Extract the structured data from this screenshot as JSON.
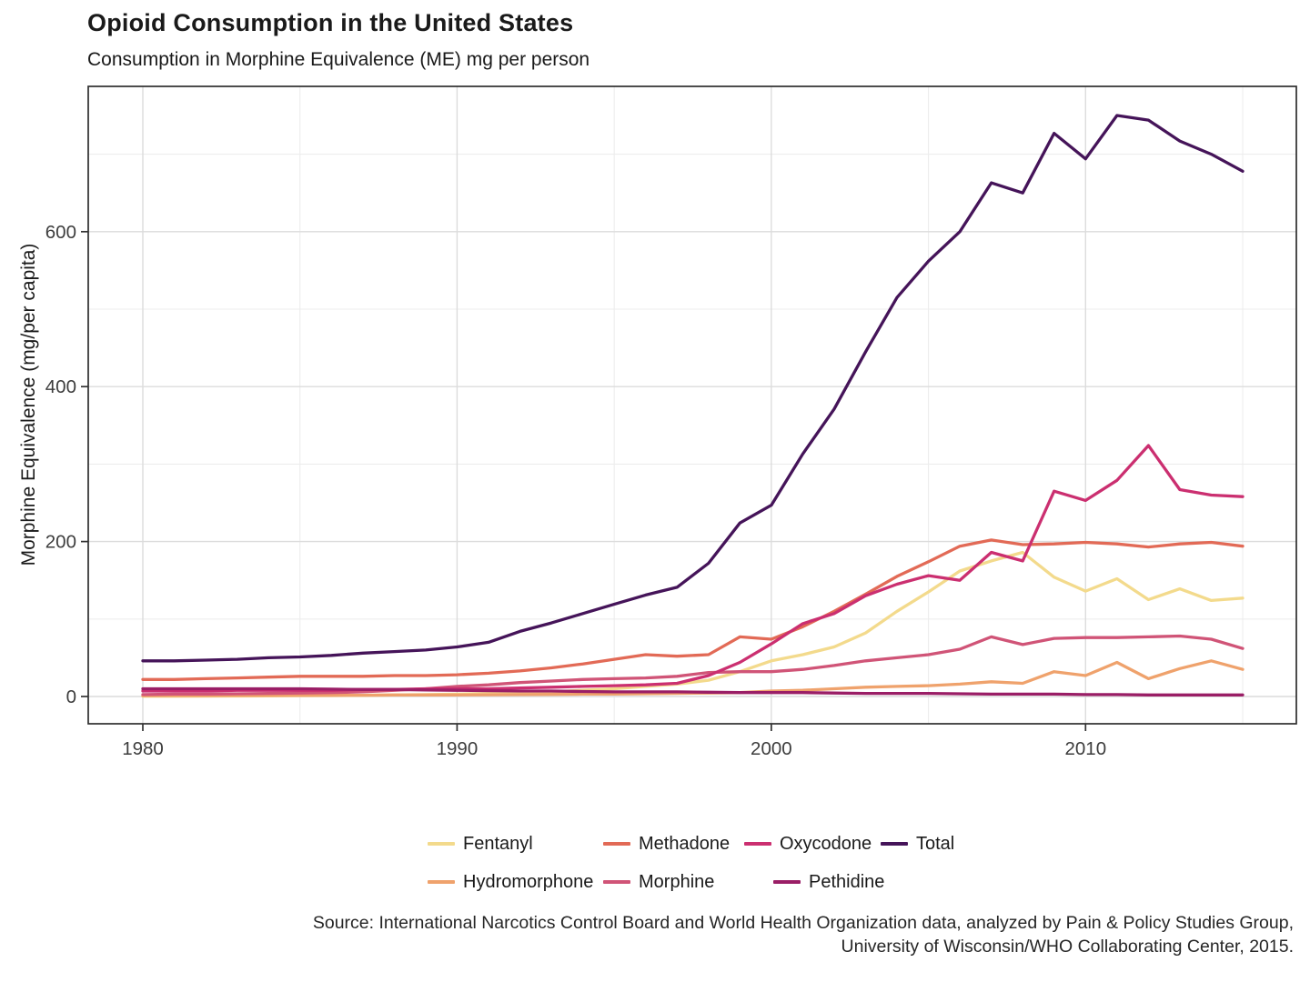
{
  "title": "Opioid Consumption in the United States",
  "subtitle": "Consumption in Morphine Equivalence (ME) mg per person",
  "y_axis": {
    "label": "Morphine Equivalence (mg/per capita)",
    "tick_labels": [
      "0",
      "200",
      "400",
      "600"
    ]
  },
  "x_axis": {
    "tick_labels": [
      "1980",
      "1990",
      "2000",
      "2010"
    ]
  },
  "caption": {
    "line1": "Source: International Narcotics Control Board and World Health Organization data, analyzed by Pain & Policy Studies Group,",
    "line2": "University of Wisconsin/WHO Collaborating Center, 2015."
  },
  "legend": {
    "rows": [
      [
        "Fentanyl",
        "Methadone",
        "Oxycodone",
        "Total"
      ],
      [
        "Hydromorphone",
        "Morphine",
        "Pethidine"
      ]
    ]
  },
  "colors": {
    "Fentanyl": "#F3DA8C",
    "Hydromorphone": "#EFA26C",
    "Methadone": "#E26A56",
    "Morphine": "#D05477",
    "Oxycodone": "#CB2F70",
    "Pethidine": "#9A1E66",
    "Total": "#451459",
    "grid_major": "#DCDCDC",
    "grid_minor": "#EDEDED",
    "panel_border": "#2e2e2e",
    "tick_text": "#3d3d3d"
  },
  "chart_data": {
    "type": "line",
    "title": "Opioid Consumption in the United States",
    "subtitle": "Consumption in Morphine Equivalence (ME) mg per person",
    "xlabel": "",
    "ylabel": "Morphine Equivalence (mg/per capita)",
    "xlim": [
      1978.2,
      2016.8
    ],
    "ylim": [
      0,
      787
    ],
    "yticks": [
      0,
      200,
      400,
      600
    ],
    "yminor": [
      100,
      300,
      500,
      700
    ],
    "xticks": [
      1980,
      1990,
      2000,
      2010
    ],
    "xminor": [
      1985,
      1995,
      2005,
      2015
    ],
    "grid": true,
    "legend_position": "bottom",
    "x": [
      1980,
      1981,
      1982,
      1983,
      1984,
      1985,
      1986,
      1987,
      1988,
      1989,
      1990,
      1991,
      1992,
      1993,
      1994,
      1995,
      1996,
      1997,
      1998,
      1999,
      2000,
      2001,
      2002,
      2003,
      2004,
      2005,
      2006,
      2007,
      2008,
      2009,
      2010,
      2011,
      2012,
      2013,
      2014,
      2015
    ],
    "series": [
      {
        "name": "Fentanyl",
        "values": [
          0.3,
          0.4,
          0.5,
          0.6,
          0.8,
          1,
          1.2,
          1.5,
          2,
          2.5,
          3,
          4,
          5,
          6,
          8,
          10,
          13,
          16,
          21,
          32,
          46,
          54,
          64,
          82,
          110,
          135,
          162,
          175,
          186,
          154,
          136,
          152,
          125,
          139,
          124,
          127
        ]
      },
      {
        "name": "Hydromorphone",
        "values": [
          1,
          1,
          1,
          1.2,
          1.3,
          1.5,
          1.5,
          1.7,
          2,
          2,
          2,
          2.2,
          2.5,
          2.7,
          3,
          3,
          3.5,
          4,
          4.5,
          5,
          7,
          8,
          10,
          12,
          13,
          14,
          16,
          19,
          17,
          32,
          27,
          44,
          23,
          36,
          46,
          35
        ]
      },
      {
        "name": "Methadone",
        "values": [
          22,
          22,
          23,
          24,
          25,
          26,
          26,
          26,
          27,
          27,
          28,
          30,
          33,
          37,
          42,
          48,
          54,
          52,
          54,
          77,
          74,
          90,
          110,
          132,
          155,
          174,
          194,
          202,
          196,
          197,
          199,
          197,
          193,
          197,
          199,
          194
        ]
      },
      {
        "name": "Morphine",
        "values": [
          2.5,
          3,
          3,
          3.5,
          4,
          4.5,
          5,
          6,
          8,
          10,
          13,
          15,
          18,
          20,
          22,
          23,
          24,
          26,
          31,
          32,
          32,
          35,
          40,
          46,
          50,
          54,
          61,
          77,
          67,
          75,
          76,
          76,
          77,
          78,
          74,
          62
        ]
      },
      {
        "name": "Oxycodone",
        "values": [
          7,
          7,
          7,
          8,
          8,
          8,
          8,
          9,
          9,
          10,
          10,
          10,
          11,
          12,
          13,
          14,
          15,
          17,
          27,
          44,
          68,
          94,
          107,
          130,
          145,
          156,
          150,
          186,
          175,
          265,
          253,
          279,
          324,
          267,
          260,
          258
        ]
      },
      {
        "name": "Pethidine",
        "values": [
          10,
          10,
          10,
          10,
          10,
          10,
          9.5,
          9,
          9,
          8.5,
          8,
          7.5,
          7,
          7,
          6.5,
          6,
          6,
          6,
          5.5,
          5,
          5,
          5,
          4.5,
          4,
          4,
          4,
          3.5,
          3,
          3,
          3,
          2.5,
          2.5,
          2,
          2,
          2,
          2
        ]
      },
      {
        "name": "Total",
        "values": [
          46,
          46,
          47,
          48,
          50,
          51,
          53,
          56,
          58,
          60,
          64,
          70,
          84,
          95,
          107,
          119,
          131,
          141,
          172,
          224,
          247,
          313,
          371,
          445,
          515,
          562,
          600,
          663,
          650,
          727,
          694,
          750,
          744,
          717,
          700,
          678
        ]
      }
    ]
  }
}
